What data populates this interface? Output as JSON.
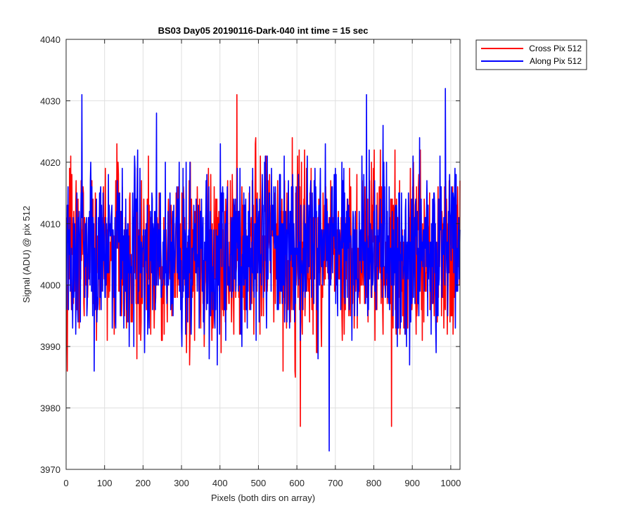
{
  "chart_data": {
    "type": "line",
    "title": "BS03 Day05 20190116-Dark-040 int time = 15 sec",
    "xlabel": "Pixels (both dirs on array)",
    "ylabel": "Signal (ADU) @ pix 512",
    "xlim": [
      0,
      1024
    ],
    "ylim": [
      3970,
      4040
    ],
    "xticks": [
      0,
      100,
      200,
      300,
      400,
      500,
      600,
      700,
      800,
      900,
      1000
    ],
    "yticks": [
      3970,
      3980,
      3990,
      4000,
      4010,
      4020,
      4030,
      4040
    ],
    "grid": true,
    "legend_position": "outside-top-right",
    "series": [
      {
        "name": "Cross Pix 512",
        "color": "#ff0000",
        "mean": 4005,
        "noise_range": [
          3977,
          4031
        ],
        "n_points": 1024
      },
      {
        "name": "Along Pix 512",
        "color": "#0000ff",
        "mean": 4006,
        "noise_range": [
          3973,
          4032
        ],
        "n_points": 1024
      }
    ],
    "notable_points": [
      {
        "series": "Cross Pix 512",
        "x": 608,
        "y": 3977
      },
      {
        "series": "Cross Pix 512",
        "x": 845,
        "y": 3977
      },
      {
        "series": "Cross Pix 512",
        "x": 443,
        "y": 4031
      },
      {
        "series": "Along Pix 512",
        "x": 683,
        "y": 3973
      },
      {
        "series": "Along Pix 512",
        "x": 40,
        "y": 4031
      },
      {
        "series": "Along Pix 512",
        "x": 780,
        "y": 4031
      },
      {
        "series": "Along Pix 512",
        "x": 985,
        "y": 4032
      }
    ]
  }
}
